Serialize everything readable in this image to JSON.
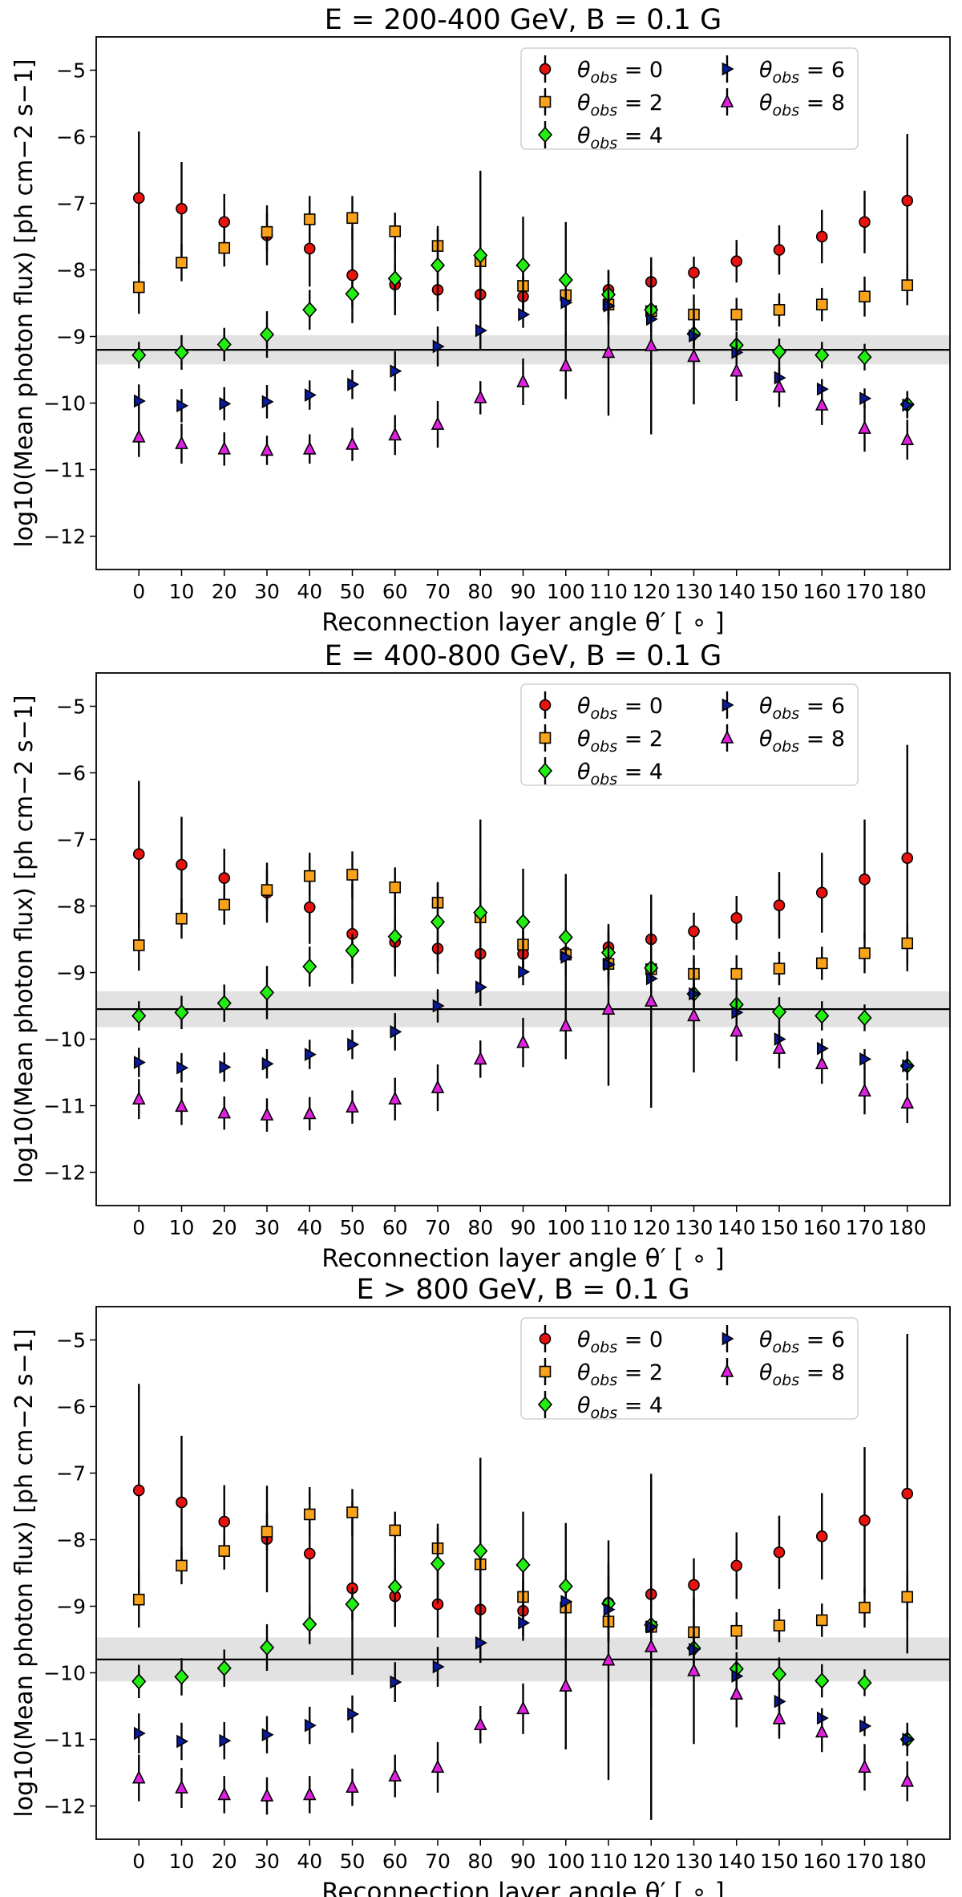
{
  "figure": {
    "xlabel": "Reconnection layer angle θ′ [ ∘ ]",
    "ylabel": "log10(Mean photon flux) [ph cm−2 s−1]",
    "xticks": [
      "0",
      "10",
      "20",
      "30",
      "40",
      "50",
      "60",
      "70",
      "80",
      "90",
      "100",
      "110",
      "120",
      "130",
      "140",
      "150",
      "160",
      "170",
      "180"
    ],
    "yticks": [
      "−12",
      "−11",
      "−10",
      "−9",
      "−8",
      "−7",
      "−6",
      "−5"
    ]
  },
  "series_style": [
    {
      "name": "θobs = 0",
      "label_main": "θ",
      "label_sub": "obs",
      "label_tail": " = 0",
      "marker": "circle",
      "color": "#e8120f"
    },
    {
      "name": "θobs = 2",
      "label_main": "θ",
      "label_sub": "obs",
      "label_tail": " = 2",
      "marker": "square",
      "color": "#f9a21b"
    },
    {
      "name": "θobs = 4",
      "label_main": "θ",
      "label_sub": "obs",
      "label_tail": " = 4",
      "marker": "diamond",
      "color": "#22ee11"
    },
    {
      "name": "θobs = 6",
      "label_main": "θ",
      "label_sub": "obs",
      "label_tail": " = 6",
      "marker": "triangle-right",
      "color": "#0a1a9a"
    },
    {
      "name": "θobs = 8",
      "label_main": "θ",
      "label_sub": "obs",
      "label_tail": " = 8",
      "marker": "triangle-up",
      "color": "#e020e0"
    }
  ],
  "chart_data": [
    {
      "type": "scatter",
      "title": "E = 200-400 GeV, B = 0.1 G",
      "xlabel": "Reconnection layer angle θ′ [∘]",
      "ylabel": "log10(Mean photon flux) [ph cm−2 s−1]",
      "xlim": [
        -10,
        190
      ],
      "ylim": [
        -12.5,
        -4.5
      ],
      "legend": "top-right",
      "x": [
        0,
        10,
        20,
        30,
        40,
        50,
        60,
        70,
        80,
        90,
        100,
        110,
        120,
        130,
        140,
        150,
        160,
        170,
        180
      ],
      "reference": {
        "value": -9.2,
        "band": [
          -9.42,
          -8.98
        ]
      },
      "series": [
        {
          "name": "θobs = 0",
          "values": [
            -6.92,
            -7.08,
            -7.28,
            -7.48,
            -7.68,
            -8.08,
            -8.22,
            -8.3,
            -8.37,
            -8.4,
            -8.4,
            -8.3,
            -8.18,
            -8.04,
            -7.87,
            -7.7,
            -7.5,
            -7.28,
            -6.96
          ],
          "err": [
            1.0,
            0.7,
            0.42,
            0.45,
            0.57,
            0.72,
            0.32,
            0.32,
            0.33,
            0.3,
            0.33,
            0.3,
            0.22,
            0.24,
            0.32,
            0.37,
            0.4,
            0.47,
            1.0
          ]
        },
        {
          "name": "θobs = 2",
          "values": [
            -8.26,
            -7.89,
            -7.67,
            -7.43,
            -7.24,
            -7.22,
            -7.42,
            -7.64,
            -7.87,
            -8.24,
            -8.38,
            -8.52,
            -8.62,
            -8.67,
            -8.67,
            -8.6,
            -8.52,
            -8.4,
            -8.23
          ],
          "err": [
            0.4,
            0.28,
            0.28,
            0.28,
            0.35,
            0.33,
            0.28,
            0.3,
            0.35,
            0.35,
            0.3,
            0.3,
            0.3,
            0.3,
            0.25,
            0.25,
            0.25,
            0.3,
            0.3
          ]
        },
        {
          "name": "θobs = 4",
          "values": [
            -9.28,
            -9.24,
            -9.12,
            -8.97,
            -8.6,
            -8.36,
            -8.13,
            -7.93,
            -7.78,
            -7.93,
            -8.15,
            -8.37,
            -8.6,
            -8.96,
            -9.13,
            -9.23,
            -9.28,
            -9.31,
            -10.02
          ],
          "err": [
            0.2,
            0.26,
            0.25,
            0.35,
            0.3,
            0.2,
            0.55,
            0.55,
            1.27,
            0.73,
            0.87,
            0.37,
            0.2,
            0.2,
            0.2,
            0.2,
            0.2,
            0.2,
            0.2
          ]
        },
        {
          "name": "θobs = 6",
          "values": [
            -9.97,
            -10.04,
            -10.01,
            -9.98,
            -9.88,
            -9.72,
            -9.52,
            -9.15,
            -8.91,
            -8.67,
            -8.49,
            -8.54,
            -8.74,
            -8.99,
            -9.24,
            -9.62,
            -9.79,
            -9.93,
            -10.03
          ],
          "err": [
            0.25,
            0.25,
            0.25,
            0.25,
            0.22,
            0.22,
            0.3,
            0.3,
            0.3,
            0.2,
            0.15,
            0.15,
            0.2,
            0.2,
            0.2,
            0.2,
            0.15,
            0.15,
            0.2
          ]
        },
        {
          "name": "θobs = 8",
          "values": [
            -10.51,
            -10.61,
            -10.69,
            -10.71,
            -10.69,
            -10.62,
            -10.48,
            -10.32,
            -9.92,
            -9.68,
            -9.44,
            -9.24,
            -9.14,
            -9.3,
            -9.52,
            -9.76,
            -10.03,
            -10.38,
            -10.55
          ],
          "err": [
            0.3,
            0.3,
            0.25,
            0.22,
            0.22,
            0.25,
            0.3,
            0.35,
            0.25,
            0.35,
            0.5,
            0.95,
            1.33,
            0.72,
            0.45,
            0.3,
            0.3,
            0.35,
            0.3
          ]
        }
      ]
    },
    {
      "type": "scatter",
      "title": "E = 400-800 GeV, B = 0.1 G",
      "xlabel": "Reconnection layer angle θ′ [∘]",
      "ylabel": "log10(Mean photon flux) [ph cm−2 s−1]",
      "xlim": [
        -10,
        190
      ],
      "ylim": [
        -12.5,
        -4.5
      ],
      "legend": "top-right",
      "x": [
        0,
        10,
        20,
        30,
        40,
        50,
        60,
        70,
        80,
        90,
        100,
        110,
        120,
        130,
        140,
        150,
        160,
        170,
        180
      ],
      "reference": {
        "value": -9.55,
        "band": [
          -9.82,
          -9.28
        ]
      },
      "series": [
        {
          "name": "θobs = 0",
          "values": [
            -7.22,
            -7.38,
            -7.58,
            -7.8,
            -8.02,
            -8.42,
            -8.54,
            -8.64,
            -8.72,
            -8.72,
            -8.7,
            -8.62,
            -8.5,
            -8.38,
            -8.18,
            -7.99,
            -7.8,
            -7.6,
            -7.28
          ],
          "err": [
            1.1,
            0.72,
            0.44,
            0.45,
            0.55,
            0.75,
            0.38,
            0.38,
            0.38,
            0.35,
            0.36,
            0.35,
            0.3,
            0.28,
            0.33,
            0.5,
            0.6,
            0.9,
            1.7
          ]
        },
        {
          "name": "θobs = 2",
          "values": [
            -8.59,
            -8.19,
            -7.98,
            -7.76,
            -7.55,
            -7.53,
            -7.72,
            -7.95,
            -8.17,
            -8.58,
            -8.73,
            -8.87,
            -8.95,
            -9.02,
            -9.02,
            -8.94,
            -8.86,
            -8.71,
            -8.56
          ],
          "err": [
            0.38,
            0.3,
            0.3,
            0.3,
            0.35,
            0.35,
            0.3,
            0.3,
            0.38,
            0.38,
            0.33,
            0.33,
            0.33,
            0.28,
            0.28,
            0.25,
            0.25,
            0.3,
            0.3
          ]
        },
        {
          "name": "θobs = 4",
          "values": [
            -9.65,
            -9.6,
            -9.46,
            -9.3,
            -8.91,
            -8.67,
            -8.46,
            -8.24,
            -8.1,
            -8.24,
            -8.47,
            -8.7,
            -8.93,
            -9.32,
            -9.48,
            -9.59,
            -9.65,
            -9.68,
            -10.4
          ],
          "err": [
            0.22,
            0.25,
            0.28,
            0.4,
            0.3,
            0.25,
            0.6,
            0.6,
            1.4,
            0.8,
            0.95,
            0.4,
            0.22,
            0.22,
            0.22,
            0.22,
            0.22,
            0.2,
            0.22
          ]
        },
        {
          "name": "θobs = 6",
          "values": [
            -10.35,
            -10.43,
            -10.42,
            -10.37,
            -10.23,
            -10.08,
            -9.89,
            -9.5,
            -9.22,
            -8.99,
            -8.77,
            -8.88,
            -9.09,
            -9.32,
            -9.6,
            -10.0,
            -10.14,
            -10.3,
            -10.4
          ],
          "err": [
            0.22,
            0.22,
            0.22,
            0.22,
            0.22,
            0.22,
            0.28,
            0.25,
            0.25,
            0.2,
            0.15,
            0.15,
            0.2,
            0.2,
            0.2,
            0.2,
            0.15,
            0.15,
            0.2
          ]
        },
        {
          "name": "θobs = 8",
          "values": [
            -10.9,
            -11.01,
            -11.11,
            -11.14,
            -11.12,
            -11.02,
            -10.9,
            -10.73,
            -10.3,
            -10.05,
            -9.8,
            -9.55,
            -9.43,
            -9.65,
            -9.88,
            -10.14,
            -10.37,
            -10.78,
            -10.96
          ],
          "err": [
            0.3,
            0.28,
            0.25,
            0.25,
            0.25,
            0.25,
            0.32,
            0.35,
            0.28,
            0.37,
            0.5,
            1.15,
            1.6,
            0.85,
            0.45,
            0.3,
            0.3,
            0.35,
            0.3
          ]
        }
      ]
    },
    {
      "type": "scatter",
      "title": "E > 800 GeV, B = 0.1 G",
      "xlabel": "Reconnection layer angle θ′ [∘]",
      "ylabel": "log10(Mean photon flux) [ph cm−2 s−1]",
      "xlim": [
        -10,
        190
      ],
      "ylim": [
        -12.5,
        -4.5
      ],
      "legend": "top-right",
      "x": [
        0,
        10,
        20,
        30,
        40,
        50,
        60,
        70,
        80,
        90,
        100,
        110,
        120,
        130,
        140,
        150,
        160,
        170,
        180
      ],
      "reference": {
        "value": -9.8,
        "band": [
          -10.13,
          -9.47
        ]
      },
      "series": [
        {
          "name": "θobs = 0",
          "values": [
            -7.26,
            -7.44,
            -7.73,
            -7.99,
            -8.21,
            -8.73,
            -8.85,
            -8.97,
            -9.05,
            -9.07,
            -9.0,
            -8.95,
            -8.82,
            -8.68,
            -8.39,
            -8.19,
            -7.95,
            -7.71,
            -7.31
          ],
          "err": [
            1.6,
            1.0,
            0.55,
            0.8,
            1.0,
            1.3,
            0.45,
            0.5,
            0.8,
            0.45,
            0.5,
            0.6,
            1.7,
            0.4,
            0.5,
            0.55,
            0.65,
            1.1,
            2.4
          ]
        },
        {
          "name": "θobs = 2",
          "values": [
            -8.9,
            -8.39,
            -8.17,
            -7.88,
            -7.62,
            -7.59,
            -7.86,
            -8.13,
            -8.37,
            -8.86,
            -9.02,
            -9.23,
            -9.31,
            -9.39,
            -9.37,
            -9.29,
            -9.21,
            -9.02,
            -8.86
          ]
        },
        {
          "name": "θobs = 4",
          "values": [
            -10.13,
            -10.06,
            -9.93,
            -9.62,
            -9.27,
            -8.97,
            -8.71,
            -8.36,
            -8.17,
            -8.38,
            -8.7,
            -8.96,
            -9.28,
            -9.63,
            -9.94,
            -10.02,
            -10.12,
            -10.15,
            -11.0
          ]
        },
        {
          "name": "θobs = 6",
          "values": [
            -10.91,
            -11.03,
            -11.02,
            -10.93,
            -10.79,
            -10.62,
            -10.14,
            -9.91,
            -9.55,
            -9.25,
            -8.93,
            -9.05,
            -9.31,
            -9.65,
            -10.05,
            -10.43,
            -10.68,
            -10.8,
            -11.0
          ]
        },
        {
          "name": "θobs = 8",
          "values": [
            -11.58,
            -11.73,
            -11.83,
            -11.85,
            -11.83,
            -11.72,
            -11.55,
            -11.42,
            -10.78,
            -10.54,
            -10.2,
            -9.81,
            -9.61,
            -9.97,
            -10.32,
            -10.69,
            -10.89,
            -11.42,
            -11.63
          ]
        }
      ]
    }
  ]
}
